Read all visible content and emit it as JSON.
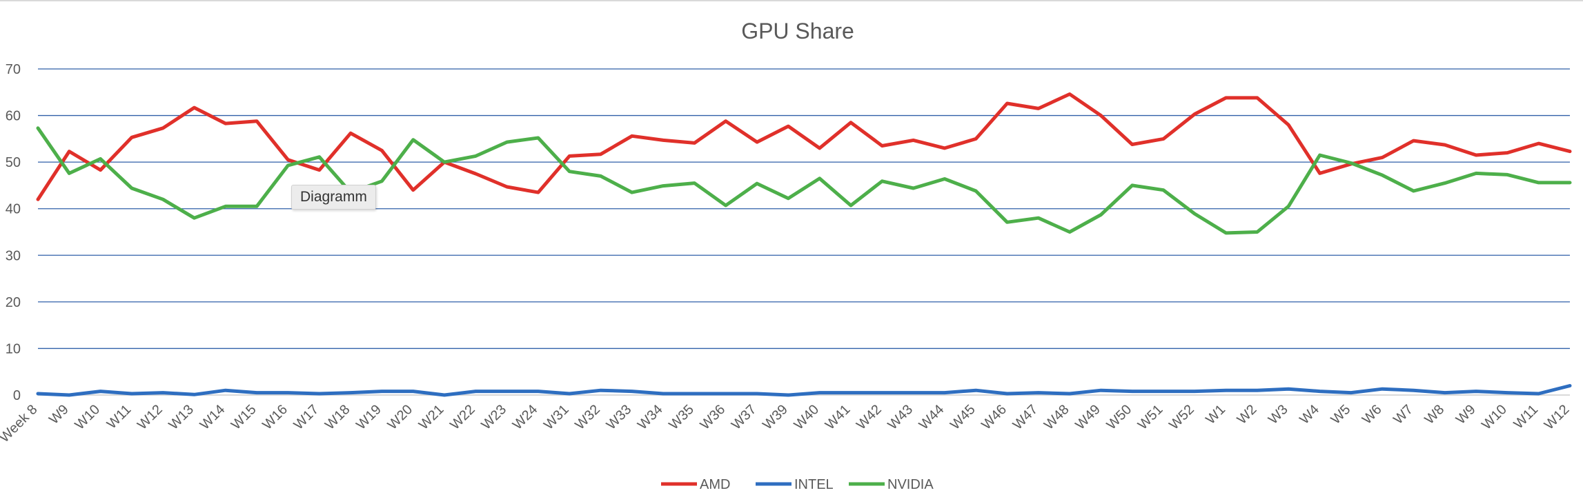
{
  "chart_data": {
    "type": "line",
    "title": "GPU Share",
    "ylim": [
      0,
      70
    ],
    "yticks": [
      0,
      10,
      20,
      30,
      40,
      50,
      60,
      70
    ],
    "grid": true,
    "legend_position": "bottom",
    "categories": [
      "Week 8",
      "W9",
      "W10",
      "W11",
      "W12",
      "W13",
      "W14",
      "W15",
      "W16",
      "W17",
      "W18",
      "W19",
      "W20",
      "W21",
      "W22",
      "W23",
      "W24",
      "W31",
      "W32",
      "W33",
      "W34",
      "W35",
      "W36",
      "W37",
      "W39",
      "W40",
      "W41",
      "W42",
      "W43",
      "W44",
      "W45",
      "W46",
      "W47",
      "W48",
      "W49",
      "W50",
      "W51",
      "W52",
      "W1",
      "W2",
      "W3",
      "W4",
      "W5",
      "W6",
      "W7",
      "W8",
      "W9",
      "W10",
      "W11",
      "W12"
    ],
    "series": [
      {
        "name": "AMD",
        "color": "#e0302a",
        "values": [
          42,
          52.3,
          48.3,
          55.3,
          57.3,
          61.7,
          58.3,
          58.8,
          50.5,
          48.3,
          56.2,
          52.5,
          44,
          50,
          47.5,
          44.7,
          43.5,
          51.3,
          51.7,
          55.6,
          54.7,
          54.1,
          58.8,
          54.3,
          57.7,
          53,
          58.5,
          53.5,
          54.7,
          53,
          55,
          62.6,
          61.5,
          64.6,
          60,
          53.8,
          55,
          60.3,
          63.8,
          63.8,
          58,
          47.6,
          49.6,
          51,
          54.6,
          53.7,
          51.5,
          52,
          54,
          52.3
        ]
      },
      {
        "name": "INTEL",
        "color": "#2e6ec0",
        "values": [
          0.3,
          0,
          0.8,
          0.3,
          0.5,
          0.1,
          1,
          0.5,
          0.5,
          0.3,
          0.5,
          0.8,
          0.8,
          0,
          0.8,
          0.8,
          0.8,
          0.3,
          1,
          0.8,
          0.3,
          0.3,
          0.3,
          0.3,
          0,
          0.5,
          0.5,
          0.5,
          0.5,
          0.5,
          1,
          0.3,
          0.5,
          0.3,
          1,
          0.8,
          0.8,
          0.8,
          1,
          1,
          1.3,
          0.8,
          0.5,
          1.3,
          1,
          0.5,
          0.8,
          0.5,
          0.3,
          2
        ]
      },
      {
        "name": "NVIDIA",
        "color": "#4daf4a",
        "values": [
          57.3,
          47.6,
          50.7,
          44.4,
          42,
          38,
          40.5,
          40.5,
          49.3,
          51.1,
          43.5,
          45.9,
          54.8,
          50,
          51.3,
          54.3,
          55.2,
          48,
          47,
          43.5,
          44.9,
          45.5,
          40.7,
          45.4,
          42.2,
          46.5,
          40.7,
          45.9,
          44.4,
          46.4,
          43.8,
          37.1,
          38,
          35,
          38.7,
          45,
          44,
          38.9,
          34.8,
          35,
          40.5,
          51.5,
          49.8,
          47.2,
          43.8,
          45.5,
          47.6,
          47.3,
          45.6,
          45.6
        ]
      }
    ]
  },
  "tooltip": {
    "text": "Diagramm"
  }
}
